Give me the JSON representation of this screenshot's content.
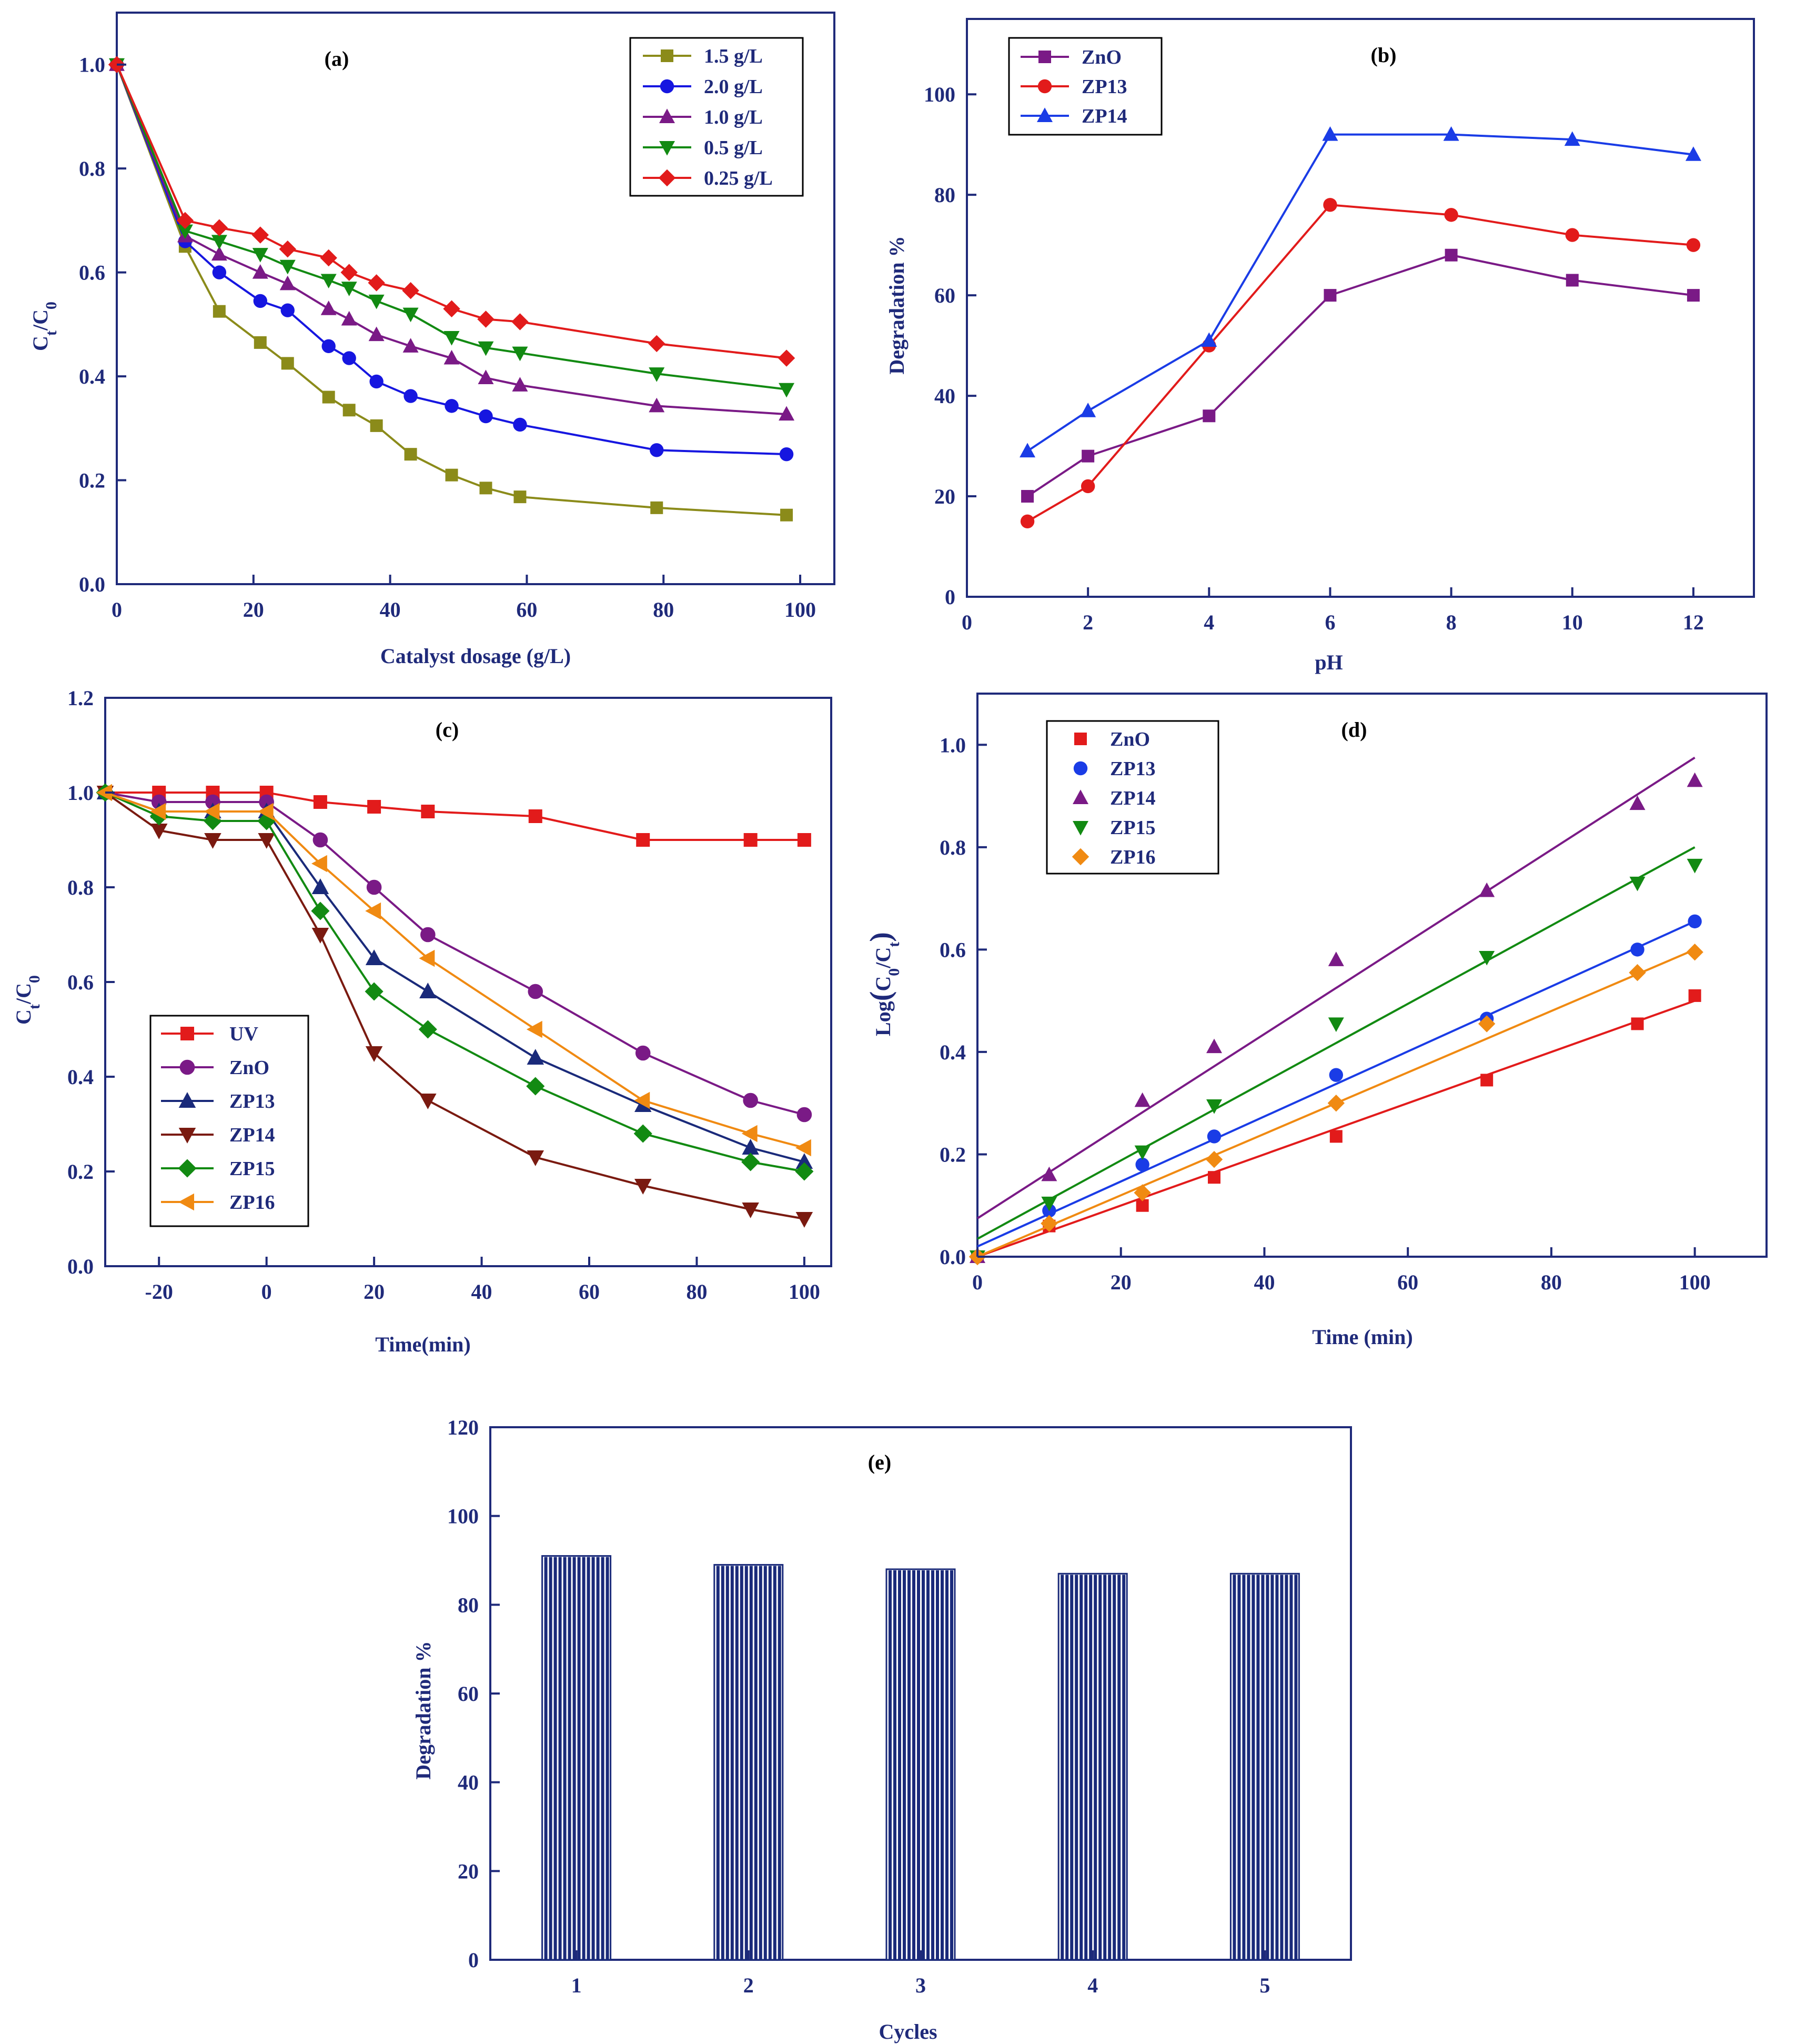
{
  "chart_data": [
    {
      "id": "a",
      "type": "line",
      "title": "(a)",
      "xlabel": "Catalyst dosage (g/L)",
      "ylabel": "Ct/C0",
      "ylabel_main": "C",
      "ylabel_sub1": "t",
      "ylabel_slash": "/C",
      "ylabel_sub2": "0",
      "xlim": [
        0,
        105
      ],
      "ylim": [
        0,
        1.1
      ],
      "xticks": [
        0,
        20,
        40,
        60,
        80,
        100
      ],
      "yticks": [
        0.0,
        0.2,
        0.4,
        0.6,
        0.8,
        1.0
      ],
      "xtick_labels": [
        "0",
        "20",
        "40",
        "60",
        "80",
        "100"
      ],
      "ytick_labels": [
        "0.0",
        "0.2",
        "0.4",
        "0.6",
        "0.8",
        "1.0"
      ],
      "legend_position": "top-right",
      "series": [
        {
          "name": "1.5 g/L",
          "color": "#8b8b1a",
          "marker": "square",
          "x": [
            0,
            10,
            15,
            21,
            25,
            31,
            34,
            38,
            43,
            49,
            54,
            59,
            79,
            98
          ],
          "y": [
            1.0,
            0.65,
            0.525,
            0.465,
            0.425,
            0.36,
            0.335,
            0.305,
            0.25,
            0.21,
            0.185,
            0.168,
            0.147,
            0.133
          ]
        },
        {
          "name": "2.0 g/L",
          "color": "#1616e0",
          "marker": "circle",
          "x": [
            0,
            10,
            15,
            21,
            25,
            31,
            34,
            38,
            43,
            49,
            54,
            59,
            79,
            98
          ],
          "y": [
            1.0,
            0.66,
            0.6,
            0.545,
            0.527,
            0.458,
            0.435,
            0.39,
            0.362,
            0.343,
            0.323,
            0.307,
            0.258,
            0.25
          ]
        },
        {
          "name": "1.0 g/L",
          "color": "#7a1a86",
          "marker": "triangle-up",
          "x": [
            0,
            10,
            15,
            21,
            25,
            31,
            34,
            38,
            43,
            49,
            54,
            59,
            79,
            98
          ],
          "y": [
            1.0,
            0.67,
            0.635,
            0.6,
            0.578,
            0.53,
            0.51,
            0.48,
            0.458,
            0.435,
            0.397,
            0.383,
            0.343,
            0.327
          ]
        },
        {
          "name": "0.5 g/L",
          "color": "#128a12",
          "marker": "triangle-down",
          "x": [
            0,
            10,
            15,
            21,
            25,
            31,
            34,
            38,
            43,
            49,
            54,
            59,
            79,
            98
          ],
          "y": [
            1.0,
            0.68,
            0.66,
            0.635,
            0.612,
            0.585,
            0.57,
            0.545,
            0.52,
            0.475,
            0.455,
            0.445,
            0.405,
            0.375
          ]
        },
        {
          "name": "0.25 g/L",
          "color": "#e21b1b",
          "marker": "diamond",
          "x": [
            0,
            10,
            15,
            21,
            25,
            31,
            34,
            38,
            43,
            49,
            54,
            59,
            79,
            98
          ],
          "y": [
            1.0,
            0.7,
            0.686,
            0.672,
            0.645,
            0.628,
            0.6,
            0.58,
            0.565,
            0.53,
            0.51,
            0.505,
            0.463,
            0.435
          ]
        }
      ]
    },
    {
      "id": "b",
      "type": "line",
      "title": "(b)",
      "xlabel": "pH",
      "ylabel": "Degradation %",
      "xlim": [
        0,
        13
      ],
      "ylim": [
        0,
        115
      ],
      "xticks": [
        0,
        2,
        4,
        6,
        8,
        10,
        12
      ],
      "yticks": [
        0,
        20,
        40,
        60,
        80,
        100
      ],
      "xtick_labels": [
        "0",
        "2",
        "4",
        "6",
        "8",
        "10",
        "12"
      ],
      "ytick_labels": [
        "0",
        "20",
        "40",
        "60",
        "80",
        "100"
      ],
      "legend_position": "top-left",
      "series": [
        {
          "name": "ZnO",
          "color": "#7a1a86",
          "marker": "square",
          "x": [
            1,
            2,
            4,
            6,
            8,
            10,
            12
          ],
          "y": [
            20,
            28,
            36,
            60,
            68,
            63,
            60
          ]
        },
        {
          "name": "ZP13",
          "color": "#e21b1b",
          "marker": "circle",
          "x": [
            1,
            2,
            4,
            6,
            8,
            10,
            12
          ],
          "y": [
            15,
            22,
            50,
            78,
            76,
            72,
            70
          ]
        },
        {
          "name": "ZP14",
          "color": "#1a3ce6",
          "marker": "triangle-up",
          "x": [
            1,
            2,
            4,
            6,
            8,
            10,
            12
          ],
          "y": [
            29,
            37,
            51,
            92,
            92,
            91,
            88
          ]
        }
      ]
    },
    {
      "id": "c",
      "type": "line",
      "title": "(c)",
      "xlabel": "Time(min)",
      "ylabel": "Ct/C0",
      "ylabel_main": "C",
      "ylabel_sub1": "t",
      "ylabel_slash": "/C",
      "ylabel_sub2": "0",
      "xlim": [
        -30,
        105
      ],
      "ylim": [
        0,
        1.2
      ],
      "xticks": [
        -20,
        0,
        20,
        40,
        60,
        80,
        100
      ],
      "yticks": [
        0.0,
        0.2,
        0.4,
        0.6,
        0.8,
        1.0,
        1.2
      ],
      "xtick_labels": [
        "-20",
        "0",
        "20",
        "40",
        "60",
        "80",
        "100"
      ],
      "ytick_labels": [
        "0.0",
        "0.2",
        "0.4",
        "0.6",
        "0.8",
        "1.0",
        "1.2"
      ],
      "legend_position": "bottom-left",
      "series": [
        {
          "name": "UV",
          "color": "#e21b1b",
          "marker": "square",
          "x": [
            -30,
            -20,
            -10,
            0,
            10,
            20,
            30,
            50,
            70,
            90,
            100
          ],
          "y": [
            1.0,
            1.0,
            1.0,
            1.0,
            0.98,
            0.97,
            0.96,
            0.95,
            0.9,
            0.9,
            0.9
          ]
        },
        {
          "name": "ZnO",
          "color": "#7a1a86",
          "marker": "circle",
          "x": [
            -30,
            -20,
            -10,
            0,
            10,
            20,
            30,
            50,
            70,
            90,
            100
          ],
          "y": [
            1.0,
            0.98,
            0.98,
            0.98,
            0.9,
            0.8,
            0.7,
            0.58,
            0.45,
            0.35,
            0.32
          ]
        },
        {
          "name": "ZP13",
          "color": "#1a2a7a",
          "marker": "triangle-up",
          "x": [
            -30,
            -20,
            -10,
            0,
            10,
            20,
            30,
            50,
            70,
            90,
            100
          ],
          "y": [
            1.0,
            0.96,
            0.96,
            0.96,
            0.8,
            0.65,
            0.58,
            0.44,
            0.34,
            0.25,
            0.22
          ]
        },
        {
          "name": "ZP14",
          "color": "#7a1a10",
          "marker": "triangle-down",
          "x": [
            -30,
            -20,
            -10,
            0,
            10,
            20,
            30,
            50,
            70,
            90,
            100
          ],
          "y": [
            1.0,
            0.92,
            0.9,
            0.9,
            0.7,
            0.45,
            0.35,
            0.23,
            0.17,
            0.12,
            0.1
          ]
        },
        {
          "name": "ZP15",
          "color": "#128a12",
          "marker": "diamond",
          "x": [
            -30,
            -20,
            -10,
            0,
            10,
            20,
            30,
            50,
            70,
            90,
            100
          ],
          "y": [
            1.0,
            0.95,
            0.94,
            0.94,
            0.75,
            0.58,
            0.5,
            0.38,
            0.28,
            0.22,
            0.2
          ]
        },
        {
          "name": "ZP16",
          "color": "#f08a12",
          "marker": "triangle-left",
          "x": [
            -30,
            -20,
            -10,
            0,
            10,
            20,
            30,
            50,
            70,
            90,
            100
          ],
          "y": [
            1.0,
            0.96,
            0.96,
            0.96,
            0.85,
            0.75,
            0.65,
            0.5,
            0.35,
            0.28,
            0.25
          ]
        }
      ]
    },
    {
      "id": "d",
      "type": "scatter",
      "title": "(d)",
      "xlabel": "Time (min)",
      "ylabel": "Log(C0/Ct)",
      "ylabel_prefix": "Log",
      "ylabel_lparen": "(",
      "ylabel_c1": "C",
      "ylabel_sub1": "0",
      "ylabel_mid": "/C",
      "ylabel_sub2": "t",
      "ylabel_rparen": ")",
      "xlim": [
        0,
        110
      ],
      "ylim": [
        0,
        1.1
      ],
      "xticks": [
        0,
        20,
        40,
        60,
        80,
        100
      ],
      "yticks": [
        0.0,
        0.2,
        0.4,
        0.6,
        0.8,
        1.0
      ],
      "xtick_labels": [
        "0",
        "20",
        "40",
        "60",
        "80",
        "100"
      ],
      "ytick_labels": [
        "0.0",
        "0.2",
        "0.4",
        "0.6",
        "0.8",
        "1.0"
      ],
      "legend_position": "top-left",
      "series": [
        {
          "name": "ZnO",
          "color": "#e21b1b",
          "marker": "square",
          "x": [
            0,
            10,
            23,
            33,
            50,
            71,
            92,
            100
          ],
          "y": [
            0.0,
            0.06,
            0.1,
            0.155,
            0.235,
            0.345,
            0.455,
            0.51
          ],
          "fit": [
            [
              0,
              0.0
            ],
            [
              100,
              0.5
            ]
          ]
        },
        {
          "name": "ZP13",
          "color": "#1a3ce6",
          "marker": "circle",
          "x": [
            0,
            10,
            23,
            33,
            50,
            71,
            92,
            100
          ],
          "y": [
            0.0,
            0.09,
            0.18,
            0.235,
            0.355,
            0.465,
            0.6,
            0.655
          ],
          "fit": [
            [
              0,
              0.02
            ],
            [
              100,
              0.655
            ]
          ]
        },
        {
          "name": "ZP14",
          "color": "#7a1a86",
          "marker": "triangle-up",
          "x": [
            0,
            10,
            23,
            33,
            50,
            71,
            92,
            100
          ],
          "y": [
            0.0,
            0.16,
            0.305,
            0.41,
            0.58,
            0.715,
            0.885,
            0.93
          ],
          "fit": [
            [
              0,
              0.075
            ],
            [
              100,
              0.975
            ]
          ]
        },
        {
          "name": "ZP15",
          "color": "#128a12",
          "marker": "triangle-down",
          "x": [
            0,
            10,
            23,
            33,
            50,
            71,
            92,
            100
          ],
          "y": [
            0.0,
            0.105,
            0.205,
            0.295,
            0.455,
            0.585,
            0.73,
            0.765
          ],
          "fit": [
            [
              0,
              0.035
            ],
            [
              100,
              0.8
            ]
          ]
        },
        {
          "name": "ZP16",
          "color": "#f08a12",
          "marker": "diamond",
          "x": [
            0,
            10,
            23,
            33,
            50,
            71,
            92,
            100
          ],
          "y": [
            0.0,
            0.065,
            0.125,
            0.19,
            0.3,
            0.455,
            0.555,
            0.595
          ],
          "fit": [
            [
              0,
              0.0
            ],
            [
              100,
              0.6
            ]
          ]
        }
      ]
    },
    {
      "id": "e",
      "type": "bar",
      "title": "(e)",
      "xlabel": "Cycles",
      "ylabel": "Degradation %",
      "categories": [
        "1",
        "2",
        "3",
        "4",
        "5"
      ],
      "values": [
        91,
        89,
        88,
        87,
        87
      ],
      "ylim": [
        0,
        120
      ],
      "yticks": [
        0,
        20,
        40,
        60,
        80,
        100,
        120
      ],
      "ytick_labels": [
        "0",
        "20",
        "40",
        "60",
        "80",
        "100",
        "120"
      ],
      "bar_color": "#1a2a7a"
    }
  ]
}
